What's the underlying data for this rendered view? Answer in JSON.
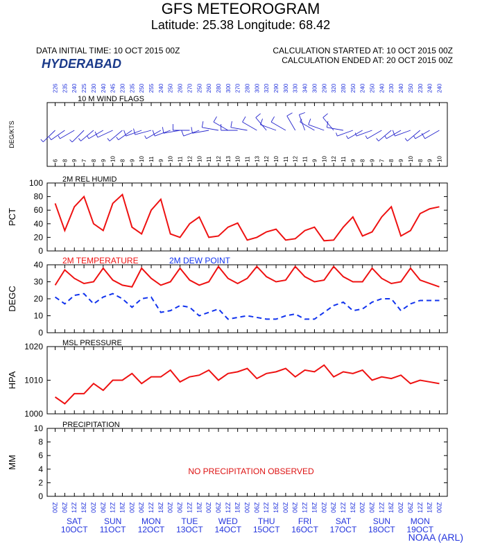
{
  "header": {
    "title": "GFS METEOROGRAM",
    "subtitle": "Latitude: 25.38 Longitude:  68.42",
    "init_time": "DATA INITIAL TIME: 10 OCT 2015 00Z",
    "station": "HYDERABAD",
    "calc_start": "CALCULATION STARTED AT: 10 OCT 2015 00Z",
    "calc_end": "CALCULATION ENDED AT: 20 OCT 2015 00Z",
    "credit": "NOAA (ARL)"
  },
  "chart_data": {
    "type": "meteogram",
    "x": [
      0,
      6,
      12,
      18,
      24,
      30,
      36,
      42,
      48,
      54,
      60,
      66,
      72,
      78,
      84,
      90,
      96,
      102,
      108,
      114,
      120,
      126,
      132,
      138,
      144,
      150,
      156,
      162,
      168,
      174,
      180,
      186,
      192,
      198,
      204,
      210,
      216,
      222,
      228,
      234,
      240
    ],
    "xlim": [
      -5,
      245
    ],
    "xticks": [
      {
        "value": 0,
        "label": "00Z"
      },
      {
        "value": 6,
        "label": "06Z"
      },
      {
        "value": 12,
        "label": "12Z"
      },
      {
        "value": 18,
        "label": "18Z"
      },
      {
        "value": 24,
        "label": "00Z"
      },
      {
        "value": 30,
        "label": "06Z"
      },
      {
        "value": 36,
        "label": "12Z"
      },
      {
        "value": 42,
        "label": "18Z"
      },
      {
        "value": 48,
        "label": "00Z"
      },
      {
        "value": 54,
        "label": "06Z"
      },
      {
        "value": 60,
        "label": "12Z"
      },
      {
        "value": 66,
        "label": "18Z"
      },
      {
        "value": 72,
        "label": "00Z"
      },
      {
        "value": 78,
        "label": "06Z"
      },
      {
        "value": 84,
        "label": "12Z"
      },
      {
        "value": 90,
        "label": "18Z"
      },
      {
        "value": 96,
        "label": "00Z"
      },
      {
        "value": 102,
        "label": "06Z"
      },
      {
        "value": 108,
        "label": "12Z"
      },
      {
        "value": 114,
        "label": "18Z"
      },
      {
        "value": 120,
        "label": "00Z"
      },
      {
        "value": 126,
        "label": "06Z"
      },
      {
        "value": 132,
        "label": "12Z"
      },
      {
        "value": 138,
        "label": "18Z"
      },
      {
        "value": 144,
        "label": "00Z"
      },
      {
        "value": 150,
        "label": "06Z"
      },
      {
        "value": 156,
        "label": "12Z"
      },
      {
        "value": 162,
        "label": "18Z"
      },
      {
        "value": 168,
        "label": "00Z"
      },
      {
        "value": 174,
        "label": "06Z"
      },
      {
        "value": 180,
        "label": "12Z"
      },
      {
        "value": 186,
        "label": "18Z"
      },
      {
        "value": 192,
        "label": "00Z"
      },
      {
        "value": 198,
        "label": "06Z"
      },
      {
        "value": 204,
        "label": "12Z"
      },
      {
        "value": 210,
        "label": "18Z"
      },
      {
        "value": 216,
        "label": "00Z"
      },
      {
        "value": 222,
        "label": "06Z"
      },
      {
        "value": 228,
        "label": "12Z"
      },
      {
        "value": 234,
        "label": "18Z"
      },
      {
        "value": 240,
        "label": "00Z"
      }
    ],
    "day_names": [
      "SAT",
      "SUN",
      "MON",
      "TUE",
      "WED",
      "THU",
      "FRI",
      "SAT",
      "SUN",
      "MON"
    ],
    "dates": [
      "10OCT",
      "11OCT",
      "12OCT",
      "13OCT",
      "14OCT",
      "15OCT",
      "16OCT",
      "17OCT",
      "18OCT",
      "19OCT"
    ],
    "panels": [
      {
        "type": "wind",
        "title": "10 M  WIND FLAGS",
        "ylabel": "DEG/KTS",
        "color": "#2222cc",
        "direction": [
          226,
          235,
          240,
          225,
          230,
          240,
          245,
          230,
          235,
          250,
          255,
          240,
          250,
          260,
          270,
          250,
          260,
          280,
          300,
          270,
          280,
          300,
          320,
          290,
          300,
          330,
          340,
          300,
          290,
          320,
          280,
          250,
          240,
          250,
          240,
          230,
          240,
          250,
          230,
          240,
          240
        ],
        "speed": [
          6,
          8,
          9,
          7,
          8,
          9,
          10,
          8,
          9,
          10,
          11,
          9,
          10,
          11,
          12,
          10,
          11,
          12,
          13,
          10,
          11,
          13,
          12,
          10,
          11,
          12,
          11,
          9,
          10,
          12,
          11,
          9,
          8,
          9,
          7,
          8,
          9,
          10,
          8,
          9,
          10
        ]
      },
      {
        "type": "line",
        "title": "2M REL HUMID",
        "ylabel": "PCT",
        "ylim": [
          0,
          100
        ],
        "yticks": [
          0,
          20,
          40,
          60,
          80,
          100
        ],
        "series": [
          {
            "name": null,
            "color": "#ee1111",
            "dash": false,
            "values": [
              70,
              30,
              65,
              80,
              40,
              30,
              70,
              83,
              35,
              25,
              60,
              76,
              25,
              20,
              40,
              50,
              20,
              22,
              35,
              41,
              16,
              20,
              28,
              32,
              16,
              18,
              30,
              35,
              15,
              16,
              35,
              50,
              22,
              28,
              50,
              65,
              22,
              30,
              55,
              62,
              65
            ]
          }
        ]
      },
      {
        "type": "line",
        "title": null,
        "ylabel": "DEGC",
        "ylim": [
          0,
          40
        ],
        "yticks": [
          0,
          10,
          20,
          30,
          40
        ],
        "series": [
          {
            "name": "2M TEMPERATURE",
            "color": "#ee1111",
            "dash": false,
            "values": [
              28,
              37,
              32,
              29,
              30,
              38,
              31,
              28,
              27,
              38,
              32,
              28,
              30,
              38,
              31,
              28,
              30,
              39,
              32,
              29,
              32,
              39,
              33,
              30,
              31,
              39,
              33,
              30,
              31,
              39,
              33,
              30,
              30,
              38,
              32,
              29,
              30,
              38,
              31,
              29,
              27
            ]
          },
          {
            "name": "2M  DEW POINT",
            "color": "#1133ee",
            "dash": true,
            "values": [
              21,
              17,
              22,
              23,
              17,
              21,
              23,
              20,
              15,
              20,
              21,
              12,
              13,
              16,
              15,
              10,
              12,
              14,
              8,
              9,
              10,
              9,
              8,
              8,
              10,
              11,
              8,
              8,
              12,
              16,
              18,
              13,
              14,
              18,
              20,
              20,
              13,
              17,
              19,
              19,
              19
            ]
          }
        ]
      },
      {
        "type": "line",
        "title": "MSL PRESSURE",
        "ylabel": "HPA",
        "ylim": [
          1000,
          1020
        ],
        "yticks": [
          1000,
          1010,
          1020
        ],
        "series": [
          {
            "name": null,
            "color": "#ee1111",
            "dash": false,
            "values": [
              1005,
              1003,
              1006,
              1006,
              1009,
              1007,
              1010,
              1010,
              1012,
              1009,
              1011,
              1011,
              1013,
              1009.5,
              1011,
              1011.5,
              1013,
              1010,
              1012,
              1012.5,
              1013.5,
              1010.5,
              1012,
              1012.5,
              1013.5,
              1011,
              1013,
              1012.5,
              1014.5,
              1011,
              1012.5,
              1012,
              1013,
              1010,
              1011,
              1010.5,
              1011.5,
              1009,
              1010,
              1009.5,
              1009
            ]
          }
        ]
      },
      {
        "type": "line",
        "title": "PRECIPITATION",
        "ylabel": "MM",
        "ylim": [
          0,
          10
        ],
        "yticks": [
          0,
          2,
          4,
          6,
          8,
          10
        ],
        "note": "NO PRECIPITATION OBSERVED",
        "series": []
      }
    ]
  }
}
